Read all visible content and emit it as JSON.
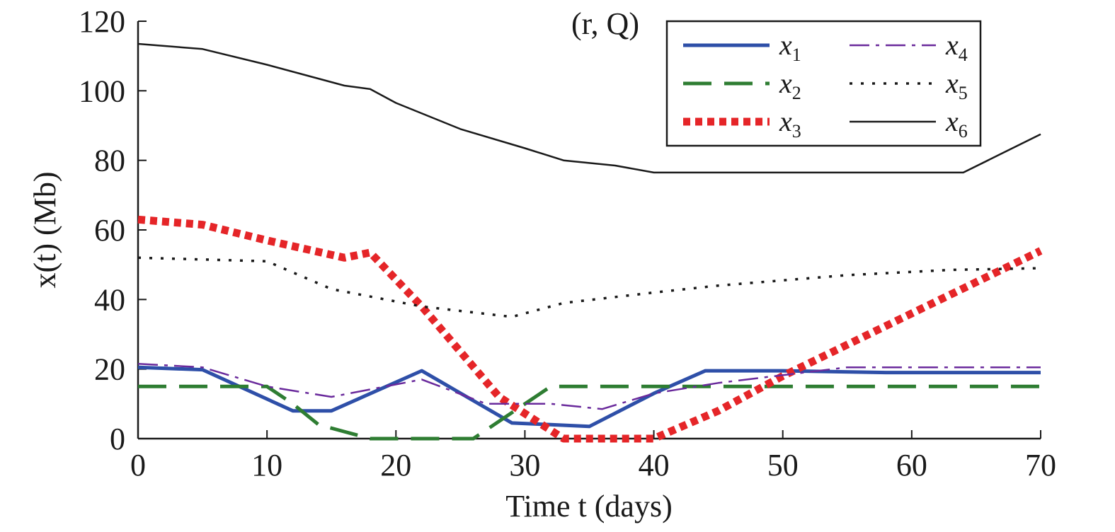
{
  "chart_data": {
    "type": "line",
    "title": "(r, Q)",
    "xlabel": "Time t (days)",
    "ylabel": "x(t) (Mb)",
    "xlim": [
      0,
      70
    ],
    "ylim": [
      0,
      120
    ],
    "xticks": [
      0,
      10,
      20,
      30,
      40,
      50,
      60,
      70
    ],
    "yticks": [
      0,
      20,
      40,
      60,
      80,
      100,
      120
    ],
    "grid": false,
    "legend_position": "top-right",
    "series": [
      {
        "name": "x1",
        "base": "x",
        "sub": "1",
        "color": "#2e4fa8",
        "dash": "solid",
        "width": 5,
        "x": [
          0,
          5,
          12,
          15,
          22,
          29,
          32,
          35,
          40,
          44,
          50,
          58,
          70
        ],
        "y": [
          20.5,
          19.8,
          8,
          8,
          19.5,
          4.5,
          4,
          3.5,
          13,
          19.5,
          19.5,
          19,
          19
        ]
      },
      {
        "name": "x2",
        "base": "x",
        "sub": "2",
        "color": "#2e7d32",
        "dash": "long",
        "width": 5,
        "x": [
          0,
          10,
          12,
          14,
          18,
          24,
          26,
          32,
          40,
          60,
          70
        ],
        "y": [
          15,
          15,
          10,
          4,
          0,
          0,
          0,
          15,
          15,
          15,
          15
        ]
      },
      {
        "name": "x3",
        "base": "x",
        "sub": "3",
        "color": "#e52528",
        "dash": "dots",
        "width": 11,
        "x": [
          0,
          5,
          10,
          16,
          18,
          22,
          28,
          33,
          40,
          45,
          50,
          60,
          70
        ],
        "y": [
          63,
          61.5,
          57,
          52,
          53.5,
          38,
          12,
          0,
          0,
          8,
          18,
          36,
          54
        ]
      },
      {
        "name": "x4",
        "base": "x",
        "sub": "4",
        "color": "#6a2a9c",
        "dash": "dashdot",
        "width": 2.5,
        "x": [
          0,
          5,
          10,
          15,
          22,
          27,
          32,
          36,
          40,
          45,
          55,
          70
        ],
        "y": [
          21.5,
          20.5,
          15,
          12,
          17,
          10,
          10,
          8.5,
          13,
          16,
          20.5,
          20.5
        ]
      },
      {
        "name": "x5",
        "base": "x",
        "sub": "5",
        "color": "#1a1a1a",
        "dash": "dotted",
        "width": 3.5,
        "x": [
          0,
          5,
          10,
          15,
          22,
          29,
          33,
          40,
          45,
          55,
          63,
          70
        ],
        "y": [
          52,
          51.5,
          51,
          43,
          38,
          35,
          39,
          42,
          44,
          47,
          48.5,
          49
        ]
      },
      {
        "name": "x6",
        "base": "x",
        "sub": "6",
        "color": "#1a1a1a",
        "dash": "solid",
        "width": 2.5,
        "x": [
          0,
          5,
          10,
          16,
          18,
          20,
          25,
          30,
          33,
          37,
          40,
          50,
          60,
          64,
          67,
          70
        ],
        "y": [
          113.5,
          112,
          107.5,
          101.5,
          100.5,
          96.5,
          89,
          83.5,
          80,
          78.5,
          76.5,
          76.5,
          76.5,
          76.5,
          82,
          87.5
        ]
      }
    ]
  }
}
